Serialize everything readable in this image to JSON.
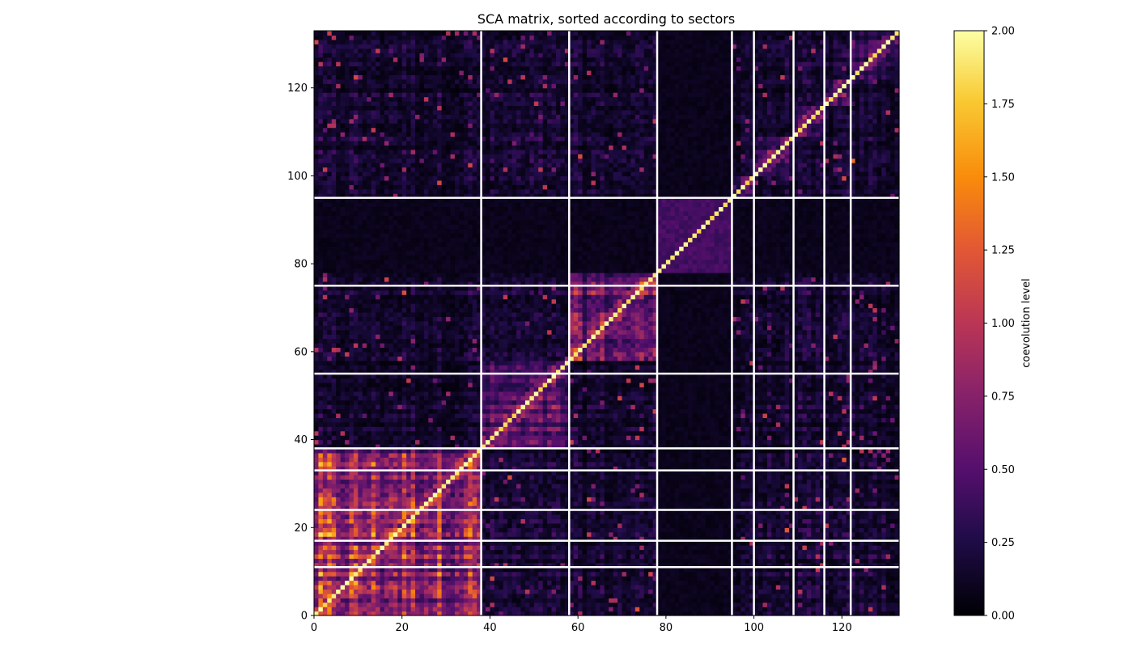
{
  "chart_data": {
    "type": "heatmap",
    "title": "SCA matrix, sorted according to sectors",
    "n": 133,
    "xlim": [
      0,
      133
    ],
    "ylim": [
      0,
      133
    ],
    "xticks": [
      0,
      20,
      40,
      60,
      80,
      100,
      120
    ],
    "yticks": [
      0,
      20,
      40,
      60,
      80,
      100,
      120
    ],
    "sector_boundaries": [
      38,
      58,
      78,
      95,
      100,
      109,
      116,
      122
    ],
    "sector_boundaries_y": [
      11,
      17,
      24,
      33,
      38,
      55,
      75,
      95
    ],
    "colormap": "inferno",
    "colorbar": {
      "label": "coevolution level",
      "min": 0.0,
      "max": 2.0,
      "ticks": [
        0.0,
        0.25,
        0.5,
        0.75,
        1.0,
        1.25,
        1.5,
        1.75,
        2.0
      ],
      "tick_labels": [
        "0.00",
        "0.25",
        "0.50",
        "0.75",
        "1.00",
        "1.25",
        "1.50",
        "1.75",
        "2.00"
      ]
    }
  }
}
